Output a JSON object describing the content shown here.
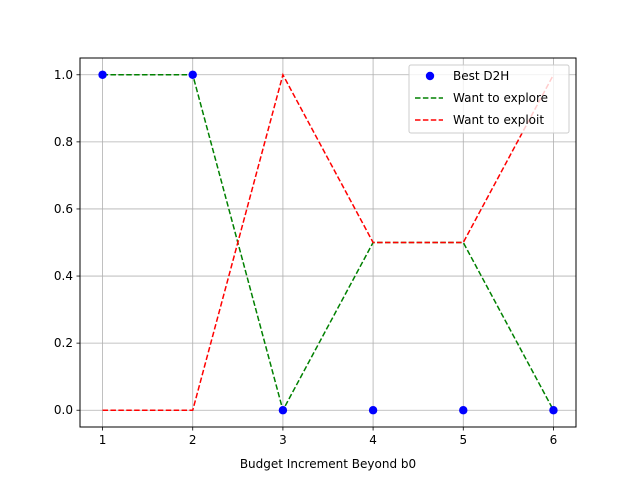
{
  "chart_data": {
    "type": "line",
    "title": "",
    "xlabel": "Budget Increment Beyond b0",
    "ylabel": "",
    "xlim": [
      0.75,
      6.25
    ],
    "ylim": [
      -0.05,
      1.05
    ],
    "x_ticks": [
      1,
      2,
      3,
      4,
      5,
      6
    ],
    "x_tick_labels": [
      "1",
      "2",
      "3",
      "4",
      "5",
      "6"
    ],
    "y_ticks": [
      0.0,
      0.2,
      0.4,
      0.6,
      0.8,
      1.0
    ],
    "y_tick_labels": [
      "0.0",
      "0.2",
      "0.4",
      "0.6",
      "0.8",
      "1.0"
    ],
    "grid": true,
    "legend_position": "top-right",
    "x": [
      1,
      2,
      3,
      4,
      5,
      6
    ],
    "series": [
      {
        "name": "Best D2H",
        "kind": "scatter",
        "color": "#0000ff",
        "values": [
          1,
          1,
          0,
          0,
          0,
          0
        ]
      },
      {
        "name": "Want to explore",
        "kind": "dashed-line",
        "color": "#008000",
        "values": [
          1,
          1,
          0,
          0.5,
          0.5,
          0
        ]
      },
      {
        "name": "Want to exploit",
        "kind": "dashed-line",
        "color": "#ff0000",
        "values": [
          0,
          0,
          1,
          0.5,
          0.5,
          1
        ]
      }
    ]
  }
}
